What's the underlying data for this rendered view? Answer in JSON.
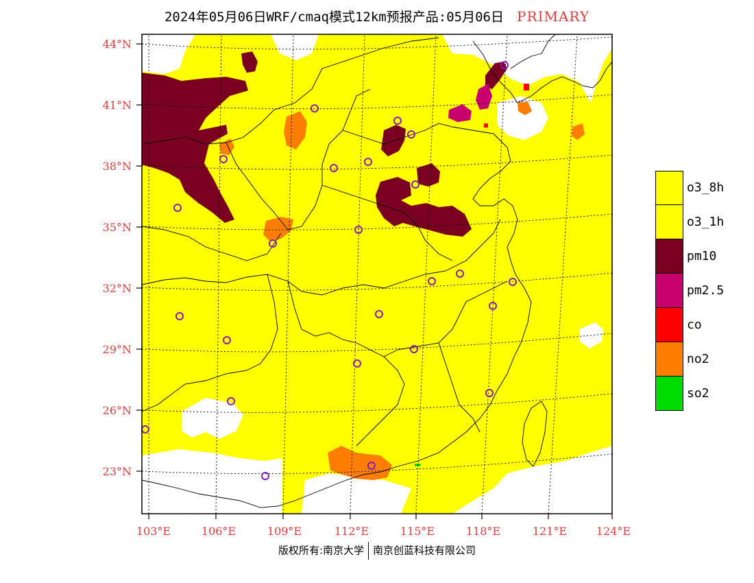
{
  "title": {
    "text": "2024年05月06日WRF/cmaq模式12km预报产品:05月06日",
    "tag": "PRIMARY",
    "tag_color": "#e03c3c"
  },
  "colors": {
    "axis_label": "#e03c3c",
    "o3": "#ffff00",
    "pm10": "#7a0020",
    "pm25": "#c8006e",
    "co": "#ff0000",
    "no2": "#ff7d00",
    "so2": "#00dc00",
    "station_marker": "#8a1cb4",
    "boundary": "#000000"
  },
  "map": {
    "lat_labels": [
      "44°N",
      "41°N",
      "38°N",
      "35°N",
      "32°N",
      "29°N",
      "26°N",
      "23°N"
    ],
    "lon_labels": [
      "103°E",
      "106°E",
      "109°E",
      "112°E",
      "115°E",
      "118°E",
      "121°E",
      "124°E"
    ]
  },
  "legend": [
    {
      "label": "o3_8h",
      "color": "#ffff00"
    },
    {
      "label": "o3_1h",
      "color": "#ffff00"
    },
    {
      "label": "pm10",
      "color": "#7a0020"
    },
    {
      "label": "pm2.5",
      "color": "#c8006e"
    },
    {
      "label": "co",
      "color": "#ff0000"
    },
    {
      "label": "no2",
      "color": "#ff7d00"
    },
    {
      "label": "so2",
      "color": "#00dc00"
    }
  ],
  "footer": {
    "left": "版权所有:南京大学",
    "right": "南京创蓝科技有限公司"
  }
}
